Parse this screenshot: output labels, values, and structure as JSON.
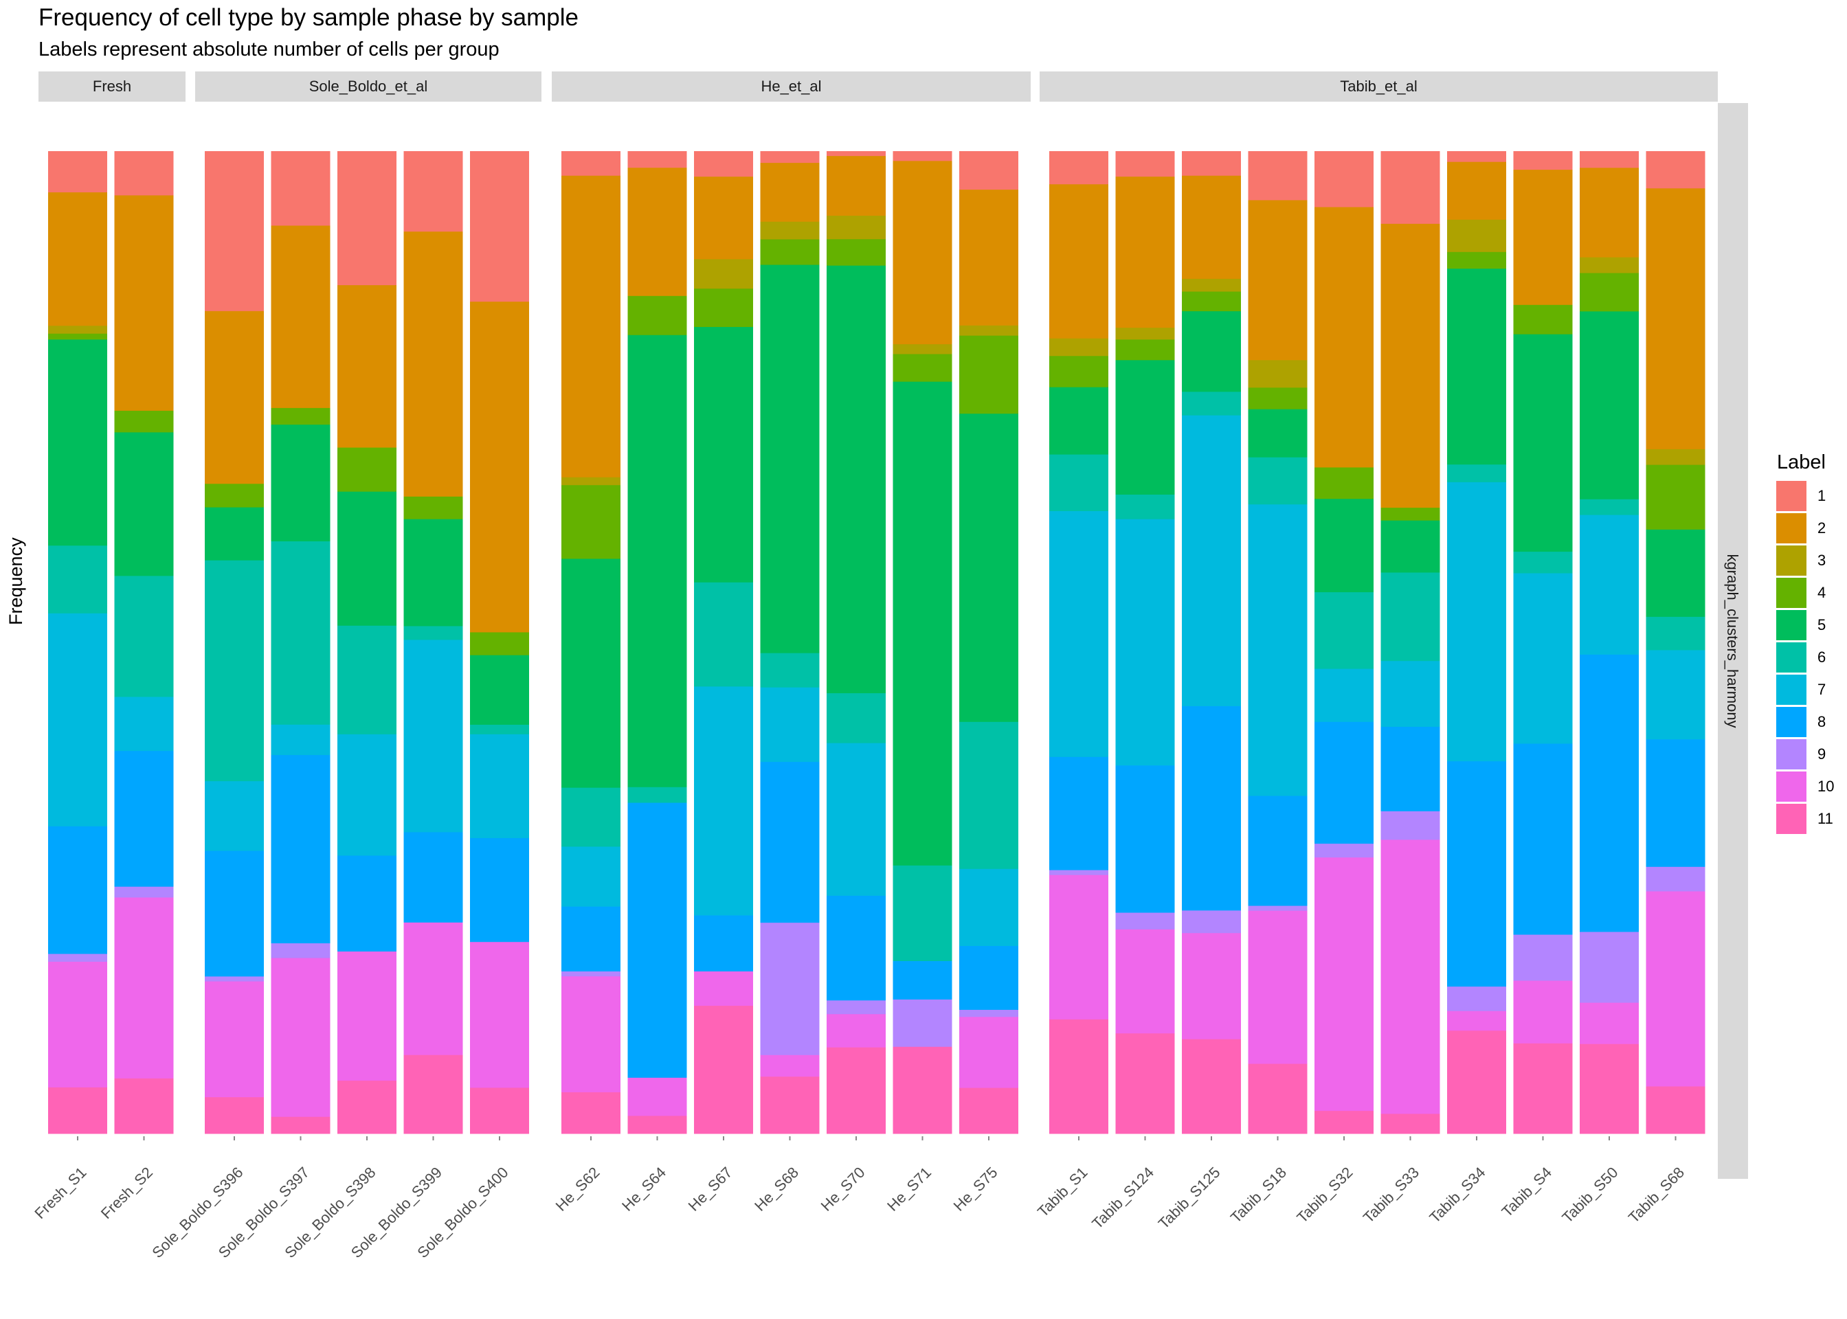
{
  "chart_data": {
    "type": "bar",
    "stacked": true,
    "normalized": true,
    "title": "Frequency of cell type by sample phase by sample",
    "subtitle": "Labels represent absolute number of cells per group",
    "xlabel": "",
    "ylabel": "Frequency",
    "ylim": [
      0,
      1
    ],
    "legend_title": "Label",
    "legend_position": "right",
    "facet_row_label": "kgraph_clusters_harmony",
    "labels": [
      "1",
      "2",
      "3",
      "4",
      "5",
      "6",
      "7",
      "8",
      "9",
      "10",
      "11"
    ],
    "colors": [
      "#F8766D",
      "#DB8E00",
      "#AEA200",
      "#64B200",
      "#00BD5C",
      "#00C1A7",
      "#00BADE",
      "#00A6FF",
      "#B385FF",
      "#EF67EB",
      "#FF63B6"
    ],
    "panels": [
      {
        "name": "Fresh",
        "samples": [
          {
            "name": "Fresh_S1",
            "values": [
              0.042,
              0.136,
              0.008,
              0.006,
              0.21,
              0.069,
              0.217,
              0.13,
              0.008,
              0.128,
              0.047
            ]
          },
          {
            "name": "Fresh_S2",
            "values": [
              0.045,
              0.219,
              0.0,
              0.022,
              0.146,
              0.123,
              0.055,
              0.138,
              0.011,
              0.184,
              0.056
            ]
          }
        ]
      },
      {
        "name": "Sole_Boldo_et_al",
        "samples": [
          {
            "name": "Sole_Boldo_S396",
            "values": [
              0.163,
              0.176,
              0.0,
              0.024,
              0.054,
              0.225,
              0.071,
              0.128,
              0.005,
              0.118,
              0.037
            ]
          },
          {
            "name": "Sole_Boldo_S397",
            "values": [
              0.076,
              0.186,
              0.0,
              0.017,
              0.119,
              0.187,
              0.031,
              0.192,
              0.015,
              0.162,
              0.017
            ]
          },
          {
            "name": "Sole_Boldo_S398",
            "values": [
              0.137,
              0.166,
              0.0,
              0.045,
              0.137,
              0.111,
              0.124,
              0.098,
              0.0,
              0.132,
              0.054
            ]
          },
          {
            "name": "Sole_Boldo_S399",
            "values": [
              0.082,
              0.27,
              0.0,
              0.023,
              0.109,
              0.014,
              0.196,
              0.092,
              0.0,
              0.135,
              0.08
            ]
          },
          {
            "name": "Sole_Boldo_S400",
            "values": [
              0.158,
              0.347,
              0.0,
              0.024,
              0.073,
              0.01,
              0.109,
              0.109,
              0.0,
              0.153,
              0.048
            ]
          }
        ]
      },
      {
        "name": "He_et_al",
        "samples": [
          {
            "name": "He_S62",
            "values": [
              0.025,
              0.307,
              0.008,
              0.075,
              0.233,
              0.06,
              0.061,
              0.066,
              0.005,
              0.118,
              0.042
            ]
          },
          {
            "name": "He_S64",
            "values": [
              0.017,
              0.131,
              0.0,
              0.04,
              0.462,
              0.016,
              0.0,
              0.281,
              0.0,
              0.039,
              0.018
            ]
          },
          {
            "name": "He_S67",
            "values": [
              0.026,
              0.084,
              0.03,
              0.039,
              0.26,
              0.106,
              0.233,
              0.057,
              0.0,
              0.035,
              0.13
            ]
          },
          {
            "name": "He_S68",
            "values": [
              0.012,
              0.06,
              0.018,
              0.026,
              0.396,
              0.035,
              0.076,
              0.164,
              0.135,
              0.022,
              0.058
            ]
          },
          {
            "name": "He_S70",
            "values": [
              0.005,
              0.061,
              0.024,
              0.027,
              0.437,
              0.051,
              0.156,
              0.107,
              0.014,
              0.034,
              0.088
            ]
          },
          {
            "name": "He_S71",
            "values": [
              0.01,
              0.186,
              0.01,
              0.028,
              0.491,
              0.097,
              0.0,
              0.039,
              0.048,
              0.0,
              0.088
            ]
          },
          {
            "name": "He_S75",
            "values": [
              0.038,
              0.134,
              0.01,
              0.077,
              0.304,
              0.145,
              0.076,
              0.063,
              0.007,
              0.07,
              0.045
            ]
          }
        ]
      },
      {
        "name": "Tabib_et_al",
        "samples": [
          {
            "name": "Tabib_S1",
            "values": [
              0.034,
              0.158,
              0.018,
              0.032,
              0.069,
              0.058,
              0.252,
              0.116,
              0.005,
              0.148,
              0.117
            ]
          },
          {
            "name": "Tabib_S124",
            "values": [
              0.026,
              0.154,
              0.012,
              0.021,
              0.137,
              0.025,
              0.251,
              0.15,
              0.017,
              0.106,
              0.102
            ]
          },
          {
            "name": "Tabib_S125",
            "values": [
              0.025,
              0.105,
              0.013,
              0.02,
              0.082,
              0.024,
              0.296,
              0.208,
              0.023,
              0.108,
              0.096
            ]
          },
          {
            "name": "Tabib_S18",
            "values": [
              0.05,
              0.163,
              0.028,
              0.022,
              0.049,
              0.048,
              0.297,
              0.112,
              0.005,
              0.156,
              0.071
            ]
          },
          {
            "name": "Tabib_S32",
            "values": [
              0.057,
              0.265,
              0.0,
              0.032,
              0.095,
              0.078,
              0.054,
              0.124,
              0.014,
              0.258,
              0.023
            ]
          },
          {
            "name": "Tabib_S33",
            "values": [
              0.074,
              0.289,
              0.0,
              0.013,
              0.053,
              0.09,
              0.067,
              0.086,
              0.029,
              0.279,
              0.02
            ]
          },
          {
            "name": "Tabib_S34",
            "values": [
              0.011,
              0.059,
              0.033,
              0.017,
              0.2,
              0.018,
              0.285,
              0.23,
              0.025,
              0.02,
              0.105
            ]
          },
          {
            "name": "Tabib_S4",
            "values": [
              0.019,
              0.138,
              0.0,
              0.03,
              0.222,
              0.022,
              0.174,
              0.195,
              0.047,
              0.064,
              0.092
            ]
          },
          {
            "name": "Tabib_S50",
            "values": [
              0.017,
              0.091,
              0.016,
              0.039,
              0.191,
              0.016,
              0.142,
              0.282,
              0.072,
              0.042,
              0.091
            ]
          },
          {
            "name": "Tabib_S68",
            "values": [
              0.038,
              0.266,
              0.016,
              0.066,
              0.089,
              0.034,
              0.091,
              0.13,
              0.025,
              0.199,
              0.048
            ]
          }
        ]
      }
    ]
  }
}
